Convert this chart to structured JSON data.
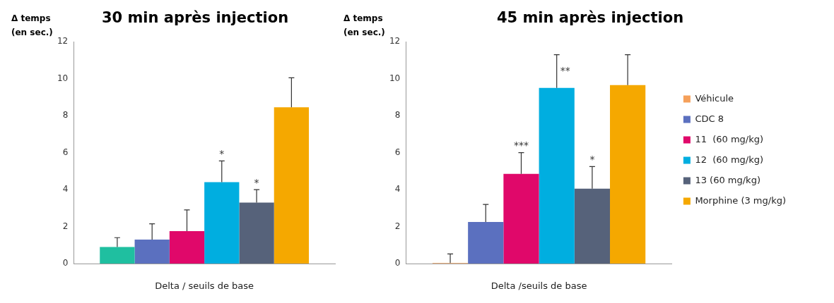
{
  "chart_data": [
    {
      "type": "bar",
      "title": "30 min après injection",
      "ylabel": "Δ temps (en sec.)",
      "xlabel": "Delta / seuils de base",
      "categories": [
        null
      ],
      "ylim": [
        0,
        12
      ],
      "yticks": [
        0,
        2,
        4,
        6,
        8,
        10,
        12
      ],
      "grid": false,
      "legend": false,
      "series": [
        {
          "color": "#1fbfa0",
          "values": [
            0.9
          ],
          "errors": [
            [
              0.9,
              1.4
            ]
          ]
        },
        {
          "color": "#5b70bf",
          "values": [
            1.3
          ],
          "errors": [
            [
              1.3,
              2.15
            ]
          ]
        },
        {
          "color": "#e0086a",
          "values": [
            1.75
          ],
          "errors": [
            [
              1.75,
              2.9
            ]
          ]
        },
        {
          "color": "#00aee0",
          "values": [
            4.4
          ],
          "errors": [
            [
              4.4,
              5.55
            ]
          ],
          "value_labels": [
            "*"
          ]
        },
        {
          "color": "#56627a",
          "values": [
            3.3
          ],
          "errors": [
            [
              3.3,
              4.0
            ]
          ],
          "value_labels": [
            "*"
          ]
        },
        {
          "color": "#f5a800",
          "values": [
            8.45
          ],
          "errors": [
            [
              8.45,
              10.05
            ]
          ]
        }
      ]
    },
    {
      "type": "bar",
      "title": "45 min après injection",
      "ylabel": "Δ temps (en sec.)",
      "xlabel": "Delta /seuils de base",
      "categories": [
        null
      ],
      "ylim": [
        0,
        12
      ],
      "yticks": [
        0,
        2,
        4,
        6,
        8,
        10,
        12
      ],
      "grid": false,
      "legend": "right",
      "series": [
        {
          "name": "Véhicule",
          "color": "#f5a05a",
          "values": [
            0.03
          ],
          "errors": [
            [
              0.03,
              0.52
            ]
          ]
        },
        {
          "name": "CDC 8",
          "color": "#5b70bf",
          "values": [
            2.25
          ],
          "errors": [
            [
              2.25,
              3.2
            ]
          ]
        },
        {
          "name": "11  (60 mg/kg)",
          "color": "#e0086a",
          "values": [
            4.85
          ],
          "errors": [
            [
              4.85,
              6.0
            ]
          ],
          "value_labels": [
            "***"
          ]
        },
        {
          "name": "12  (60 mg/kg)",
          "color": "#00aee0",
          "values": [
            9.5
          ],
          "errors": [
            [
              9.5,
              11.3
            ]
          ],
          "value_labels": [
            "**"
          ]
        },
        {
          "name": "13 (60 mg/kg)",
          "color": "#56627a",
          "values": [
            4.05
          ],
          "errors": [
            [
              4.05,
              5.25
            ]
          ],
          "value_labels": [
            "*"
          ]
        },
        {
          "name": "Morphine (3 mg/kg)",
          "color": "#f5a800",
          "values": [
            9.65
          ],
          "errors": [
            [
              9.65,
              11.3
            ]
          ]
        }
      ]
    }
  ]
}
